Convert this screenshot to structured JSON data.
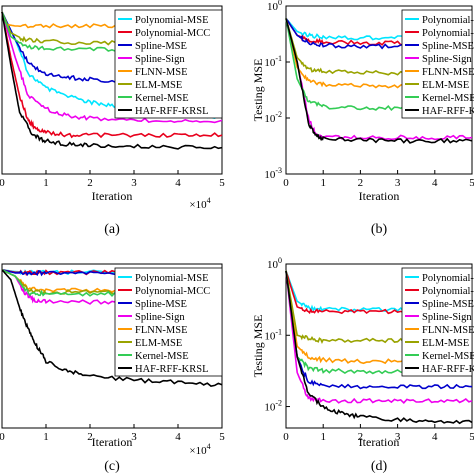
{
  "figure": {
    "panels": [
      {
        "caption": "(a)",
        "xlabel": "Iteration",
        "ylabel": "",
        "xmultiplier": "×10",
        "xmultiplier_exp": "4"
      },
      {
        "caption": "(b)",
        "xlabel": "Iteration",
        "ylabel": "Testing MSE",
        "xmultiplier": "",
        "xmultiplier_exp": ""
      },
      {
        "caption": "(c)",
        "xlabel": "Iteration",
        "ylabel": "",
        "xmultiplier": "×10",
        "xmultiplier_exp": "4"
      },
      {
        "caption": "(d)",
        "xlabel": "Iteration",
        "ylabel": "Testing MSE",
        "xmultiplier": "",
        "xmultiplier_exp": ""
      }
    ]
  },
  "chart_data": [
    {
      "type": "line",
      "caption": "(a)",
      "xlabel": "Iteration",
      "ylabel": "",
      "x_scale_label": "×10^4",
      "xlim": [
        0,
        5
      ],
      "xticks": [
        "0",
        "1",
        "2",
        "3",
        "4",
        "5"
      ],
      "ylim": [
        0,
        1
      ],
      "yscale": "log",
      "yticks": [],
      "grid": false,
      "legend_position": "top-right",
      "series": [
        {
          "name": "Polynomial-MSE",
          "color": "#00e5ff",
          "x": [
            0,
            0.3,
            0.6,
            1,
            1.5,
            2,
            2.5,
            3,
            3.5,
            4,
            4.5,
            5
          ],
          "y": [
            0.9,
            0.55,
            0.3,
            0.23,
            0.2,
            0.18,
            0.17,
            0.16,
            0.15,
            0.145,
            0.14,
            0.14
          ]
        },
        {
          "name": "Polynomial-MCC",
          "color": "#e8001c",
          "x": [
            0,
            0.2,
            0.4,
            0.6,
            0.8,
            1,
            1.5,
            2,
            3,
            4,
            5
          ],
          "y": [
            0.9,
            0.4,
            0.2,
            0.13,
            0.11,
            0.105,
            0.1,
            0.1,
            0.1,
            0.1,
            0.1
          ]
        },
        {
          "name": "Spline-MSE",
          "color": "#0000cc",
          "x": [
            0,
            0.3,
            0.6,
            1,
            1.5,
            2,
            3,
            4,
            5
          ],
          "y": [
            0.9,
            0.55,
            0.36,
            0.3,
            0.28,
            0.27,
            0.26,
            0.26,
            0.26
          ]
        },
        {
          "name": "Spline-Sign",
          "color": "#ee00ee",
          "x": [
            0,
            0.3,
            0.6,
            1,
            1.5,
            2,
            3,
            4,
            5
          ],
          "y": [
            0.9,
            0.4,
            0.2,
            0.16,
            0.14,
            0.135,
            0.13,
            0.13,
            0.13
          ]
        },
        {
          "name": "FLNN-MSE",
          "color": "#ff9900",
          "x": [
            0,
            0.1,
            0.3,
            1,
            2,
            3,
            4,
            5
          ],
          "y": [
            0.9,
            0.72,
            0.7,
            0.7,
            0.7,
            0.7,
            0.7,
            0.7
          ]
        },
        {
          "name": "ELM-MSE",
          "color": "#99a300",
          "x": [
            0,
            0.2,
            0.5,
            1,
            2,
            3,
            4,
            5
          ],
          "y": [
            0.9,
            0.62,
            0.55,
            0.53,
            0.52,
            0.52,
            0.52,
            0.52
          ]
        },
        {
          "name": "Kernel-MSE",
          "color": "#33cc55",
          "x": [
            0,
            0.2,
            0.5,
            1,
            2,
            3,
            4,
            5
          ],
          "y": [
            0.9,
            0.58,
            0.49,
            0.47,
            0.46,
            0.46,
            0.46,
            0.46
          ]
        },
        {
          "name": "HAF-RFF-KRSL",
          "color": "#000000",
          "x": [
            0,
            0.2,
            0.4,
            0.7,
            1,
            1.5,
            2,
            3,
            4,
            5
          ],
          "y": [
            0.9,
            0.35,
            0.15,
            0.1,
            0.09,
            0.085,
            0.083,
            0.082,
            0.081,
            0.08
          ]
        }
      ]
    },
    {
      "type": "line",
      "caption": "(b)",
      "xlabel": "Iteration",
      "ylabel": "Testing MSE",
      "xlim": [
        0,
        5
      ],
      "xticks": [
        "0",
        "1",
        "2",
        "3",
        "4",
        "5"
      ],
      "ylim": [
        0.001,
        1
      ],
      "yscale": "log",
      "yticks": [
        "10^0",
        "10^-1",
        "10^-2",
        "10^-3"
      ],
      "grid": false,
      "legend_position": "top-right",
      "series": [
        {
          "name": "Polynomial-MSE",
          "color": "#00e5ff",
          "x": [
            0,
            0.3,
            0.6,
            1,
            2,
            3,
            4,
            5
          ],
          "y": [
            0.6,
            0.35,
            0.3,
            0.28,
            0.27,
            0.27,
            0.27,
            0.27
          ]
        },
        {
          "name": "Polynomial-MCC",
          "color": "#e8001c",
          "x": [
            0,
            0.3,
            0.6,
            1,
            2,
            3,
            4,
            5
          ],
          "y": [
            0.6,
            0.3,
            0.25,
            0.23,
            0.22,
            0.22,
            0.21,
            0.21
          ]
        },
        {
          "name": "Spline-MSE",
          "color": "#0000cc",
          "x": [
            0,
            0.3,
            0.6,
            1,
            2,
            3,
            4,
            5
          ],
          "y": [
            0.6,
            0.3,
            0.22,
            0.2,
            0.19,
            0.19,
            0.19,
            0.19
          ]
        },
        {
          "name": "Spline-Sign",
          "color": "#ee00ee",
          "x": [
            0,
            0.3,
            0.6,
            0.8,
            1,
            2,
            3,
            4,
            5
          ],
          "y": [
            0.6,
            0.1,
            0.01,
            0.005,
            0.0045,
            0.0045,
            0.0045,
            0.0045,
            0.0045
          ]
        },
        {
          "name": "FLNN-MSE",
          "color": "#ff9900",
          "x": [
            0,
            0.3,
            0.6,
            1,
            2,
            3,
            4,
            5
          ],
          "y": [
            0.6,
            0.08,
            0.045,
            0.04,
            0.038,
            0.037,
            0.037,
            0.037
          ]
        },
        {
          "name": "ELM-MSE",
          "color": "#99a300",
          "x": [
            0,
            0.3,
            0.6,
            1,
            2,
            3,
            4,
            5
          ],
          "y": [
            0.6,
            0.12,
            0.075,
            0.068,
            0.065,
            0.064,
            0.064,
            0.064
          ]
        },
        {
          "name": "Kernel-MSE",
          "color": "#33cc55",
          "x": [
            0,
            0.3,
            0.6,
            1,
            2,
            3,
            4,
            5
          ],
          "y": [
            0.6,
            0.05,
            0.02,
            0.016,
            0.015,
            0.015,
            0.015,
            0.015
          ]
        },
        {
          "name": "HAF-RFF-KRSL",
          "color": "#000000",
          "x": [
            0,
            0.3,
            0.6,
            0.8,
            1,
            2,
            3,
            4,
            5
          ],
          "y": [
            0.6,
            0.1,
            0.008,
            0.005,
            0.0042,
            0.004,
            0.0039,
            0.0039,
            0.0039
          ]
        }
      ]
    },
    {
      "type": "line",
      "caption": "(c)",
      "xlabel": "Iteration",
      "ylabel": "",
      "x_scale_label": "×10^4",
      "xlim": [
        0,
        5
      ],
      "xticks": [
        "0",
        "1",
        "2",
        "3",
        "4",
        "5"
      ],
      "ylim": [
        0,
        1
      ],
      "yscale": "log",
      "yticks": [],
      "grid": false,
      "legend_position": "top-right",
      "series": [
        {
          "name": "Polynomial-MSE",
          "color": "#00e5ff",
          "x": [
            0,
            0.3,
            0.6,
            1,
            2,
            3,
            4,
            5
          ],
          "y": [
            0.9,
            0.87,
            0.86,
            0.86,
            0.86,
            0.86,
            0.86,
            0.86
          ]
        },
        {
          "name": "Polynomial-MCC",
          "color": "#e8001c",
          "x": [
            0,
            0.3,
            0.6,
            1,
            2,
            3,
            4,
            5
          ],
          "y": [
            0.9,
            0.86,
            0.855,
            0.855,
            0.855,
            0.855,
            0.855,
            0.855
          ]
        },
        {
          "name": "Spline-MSE",
          "color": "#0000cc",
          "x": [
            0,
            0.3,
            0.6,
            1,
            2,
            3,
            4,
            5
          ],
          "y": [
            0.9,
            0.85,
            0.85,
            0.85,
            0.85,
            0.85,
            0.85,
            0.85
          ]
        },
        {
          "name": "Spline-Sign",
          "color": "#ee00ee",
          "x": [
            0,
            0.3,
            0.5,
            0.7,
            1,
            2,
            3,
            4,
            5
          ],
          "y": [
            0.9,
            0.8,
            0.6,
            0.52,
            0.5,
            0.5,
            0.5,
            0.5,
            0.5
          ]
        },
        {
          "name": "FLNN-MSE",
          "color": "#ff9900",
          "x": [
            0,
            0.3,
            0.6,
            1,
            2,
            3,
            4,
            5
          ],
          "y": [
            0.9,
            0.8,
            0.63,
            0.62,
            0.62,
            0.62,
            0.62,
            0.62
          ]
        },
        {
          "name": "ELM-MSE",
          "color": "#99a300",
          "x": [
            0,
            0.3,
            0.6,
            1,
            2,
            3,
            4,
            5
          ],
          "y": [
            0.9,
            0.8,
            0.61,
            0.6,
            0.6,
            0.6,
            0.6,
            0.6
          ]
        },
        {
          "name": "Kernel-MSE",
          "color": "#33cc55",
          "x": [
            0,
            0.3,
            0.6,
            1,
            2,
            3,
            4,
            5
          ],
          "y": [
            0.9,
            0.8,
            0.59,
            0.58,
            0.58,
            0.58,
            0.58,
            0.58
          ]
        },
        {
          "name": "HAF-RFF-KRSL",
          "color": "#000000",
          "x": [
            0,
            0.2,
            0.4,
            0.6,
            0.8,
            1,
            1.5,
            2,
            3,
            4,
            5
          ],
          "y": [
            0.9,
            0.75,
            0.45,
            0.3,
            0.22,
            0.17,
            0.14,
            0.13,
            0.12,
            0.115,
            0.11
          ]
        }
      ]
    },
    {
      "type": "line",
      "caption": "(d)",
      "xlabel": "Iteration",
      "ylabel": "Testing MSE",
      "xlim": [
        0,
        5
      ],
      "xticks": [
        "0",
        "1",
        "2",
        "3",
        "4",
        "5"
      ],
      "ylim": [
        0.005,
        1
      ],
      "yscale": "log",
      "yticks": [
        "10^0",
        "10^-1",
        "10^-2"
      ],
      "grid": false,
      "legend_position": "top-right",
      "series": [
        {
          "name": "Polynomial-MSE",
          "color": "#00e5ff",
          "x": [
            0,
            0.3,
            0.6,
            1,
            2,
            3,
            4,
            5
          ],
          "y": [
            0.8,
            0.3,
            0.24,
            0.23,
            0.23,
            0.23,
            0.23,
            0.23
          ]
        },
        {
          "name": "Polynomial-MCC",
          "color": "#e8001c",
          "x": [
            0,
            0.3,
            0.6,
            1,
            2,
            3,
            4,
            5
          ],
          "y": [
            0.8,
            0.25,
            0.22,
            0.215,
            0.215,
            0.215,
            0.215,
            0.215
          ]
        },
        {
          "name": "Spline-MSE",
          "color": "#0000cc",
          "x": [
            0,
            0.3,
            0.6,
            1,
            2,
            3,
            4,
            5
          ],
          "y": [
            0.8,
            0.05,
            0.022,
            0.02,
            0.019,
            0.019,
            0.019,
            0.019
          ]
        },
        {
          "name": "Spline-Sign",
          "color": "#ee00ee",
          "x": [
            0,
            0.3,
            0.6,
            1,
            2,
            3,
            4,
            5
          ],
          "y": [
            0.8,
            0.03,
            0.013,
            0.012,
            0.012,
            0.012,
            0.012,
            0.012
          ]
        },
        {
          "name": "FLNN-MSE",
          "color": "#ff9900",
          "x": [
            0,
            0.3,
            0.6,
            1,
            2,
            3,
            4,
            5
          ],
          "y": [
            0.8,
            0.07,
            0.05,
            0.045,
            0.043,
            0.043,
            0.043,
            0.043
          ]
        },
        {
          "name": "ELM-MSE",
          "color": "#99a300",
          "x": [
            0,
            0.3,
            0.6,
            1,
            2,
            3,
            4,
            5
          ],
          "y": [
            0.8,
            0.1,
            0.09,
            0.085,
            0.085,
            0.085,
            0.085,
            0.085
          ]
        },
        {
          "name": "Kernel-MSE",
          "color": "#33cc55",
          "x": [
            0,
            0.3,
            0.6,
            1,
            2,
            3,
            4,
            5
          ],
          "y": [
            0.8,
            0.05,
            0.035,
            0.032,
            0.031,
            0.031,
            0.031,
            0.031
          ]
        },
        {
          "name": "HAF-RFF-KRSL",
          "color": "#000000",
          "x": [
            0,
            0.3,
            0.6,
            1,
            1.5,
            2,
            3,
            4,
            5
          ],
          "y": [
            0.8,
            0.05,
            0.015,
            0.01,
            0.008,
            0.0072,
            0.0065,
            0.0062,
            0.006
          ]
        }
      ]
    }
  ]
}
